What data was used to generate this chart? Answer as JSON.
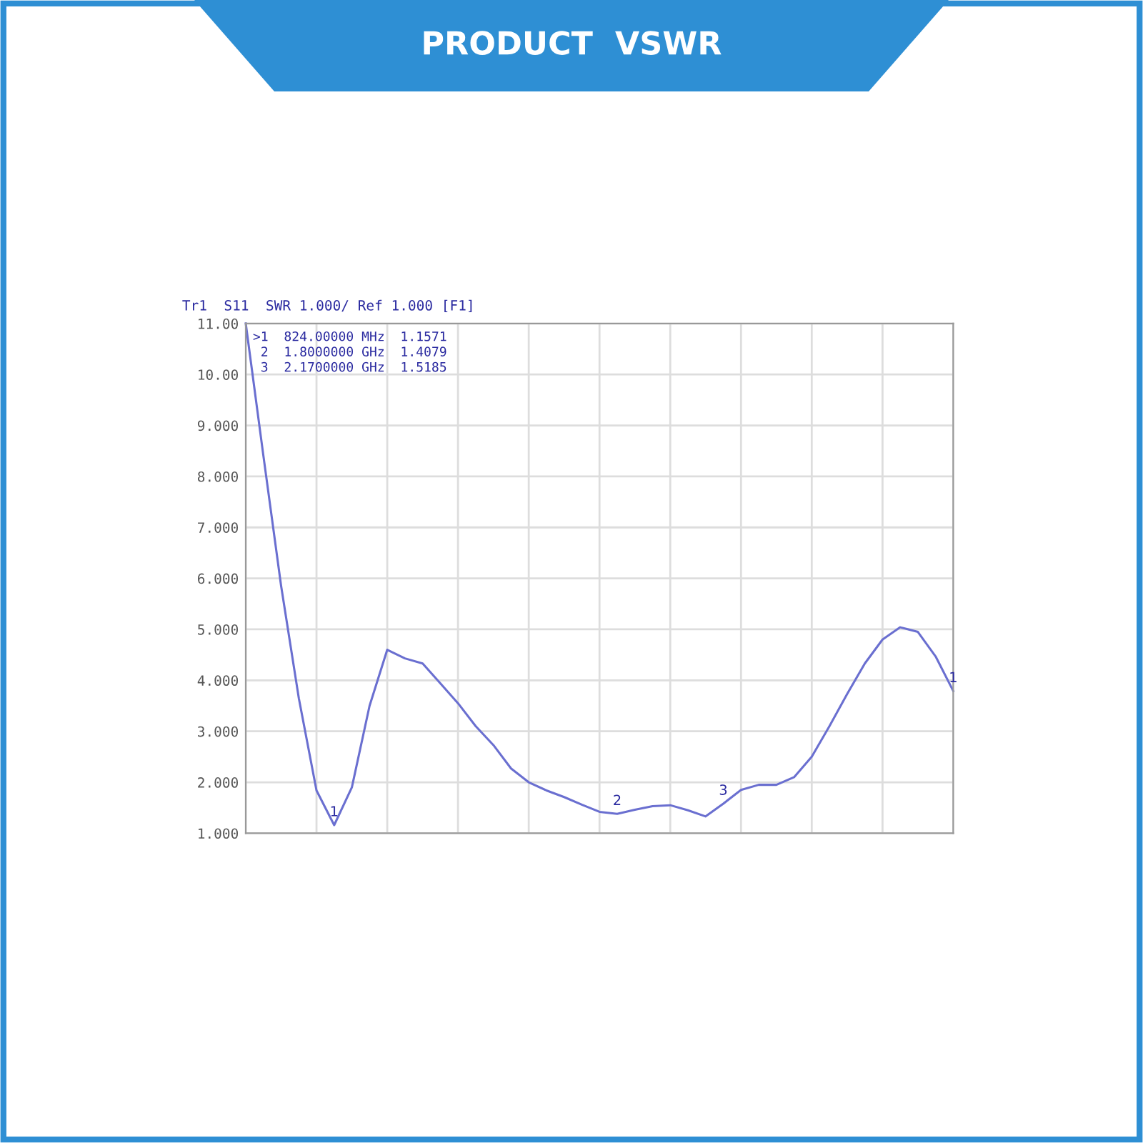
{
  "chart_data": {
    "type": "line",
    "title": "PRODUCT  VSWR",
    "subtitle": "Tr1  S11  SWR 1.000/ Ref 1.000 [F1]",
    "annotations": [
      ">1  824.00000 MHz  1.1571",
      " 2  1.8000000 GHz  1.4079",
      " 3  2.1700000 GHz  1.5185",
      {
        "text": "1",
        "y": 1.16
      },
      {
        "text": "2",
        "y": 1.38
      },
      {
        "text": "3",
        "y": 1.58
      },
      {
        "text": "1",
        "y": 3.79
      }
    ],
    "categories": [
      null,
      null,
      null,
      null,
      null,
      null,
      null,
      null,
      null,
      null,
      null,
      null,
      null,
      null,
      null,
      null,
      null,
      null,
      null,
      null,
      null,
      null,
      null,
      null,
      null,
      null,
      null,
      null,
      null,
      null,
      null,
      null,
      null,
      null,
      null,
      null,
      null,
      null,
      null,
      null,
      null
    ],
    "series": [
      {
        "color": "#6a6fd0",
        "values": [
          11.0,
          8.4,
          5.85,
          3.65,
          1.84,
          1.16,
          1.9,
          3.5,
          4.6,
          4.43,
          4.33,
          3.94,
          3.55,
          3.1,
          2.73,
          2.27,
          2.0,
          1.84,
          1.71,
          1.56,
          1.42,
          1.38,
          1.46,
          1.53,
          1.55,
          1.45,
          1.33,
          1.58,
          1.85,
          1.95,
          1.95,
          2.1,
          2.5,
          3.1,
          3.73,
          4.33,
          4.8,
          5.04,
          4.95,
          4.47,
          3.79
        ]
      }
    ],
    "ylim": [
      1,
      11
    ],
    "yticks": [
      {
        "value": 1,
        "label": "1.000"
      },
      {
        "value": 2,
        "label": "2.000"
      },
      {
        "value": 3,
        "label": "3.000"
      },
      {
        "value": 4,
        "label": "4.000"
      },
      {
        "value": 5,
        "label": "5.000"
      },
      {
        "value": 6,
        "label": "6.000"
      },
      {
        "value": 7,
        "label": "7.000"
      },
      {
        "value": 8,
        "label": "8.000"
      },
      {
        "value": 9,
        "label": "9.000"
      },
      {
        "value": 10,
        "label": "10.00"
      },
      {
        "value": 11,
        "label": "11.00"
      }
    ],
    "tick_labels": "y",
    "grid": true,
    "marker": "none",
    "line_style": "solid"
  }
}
